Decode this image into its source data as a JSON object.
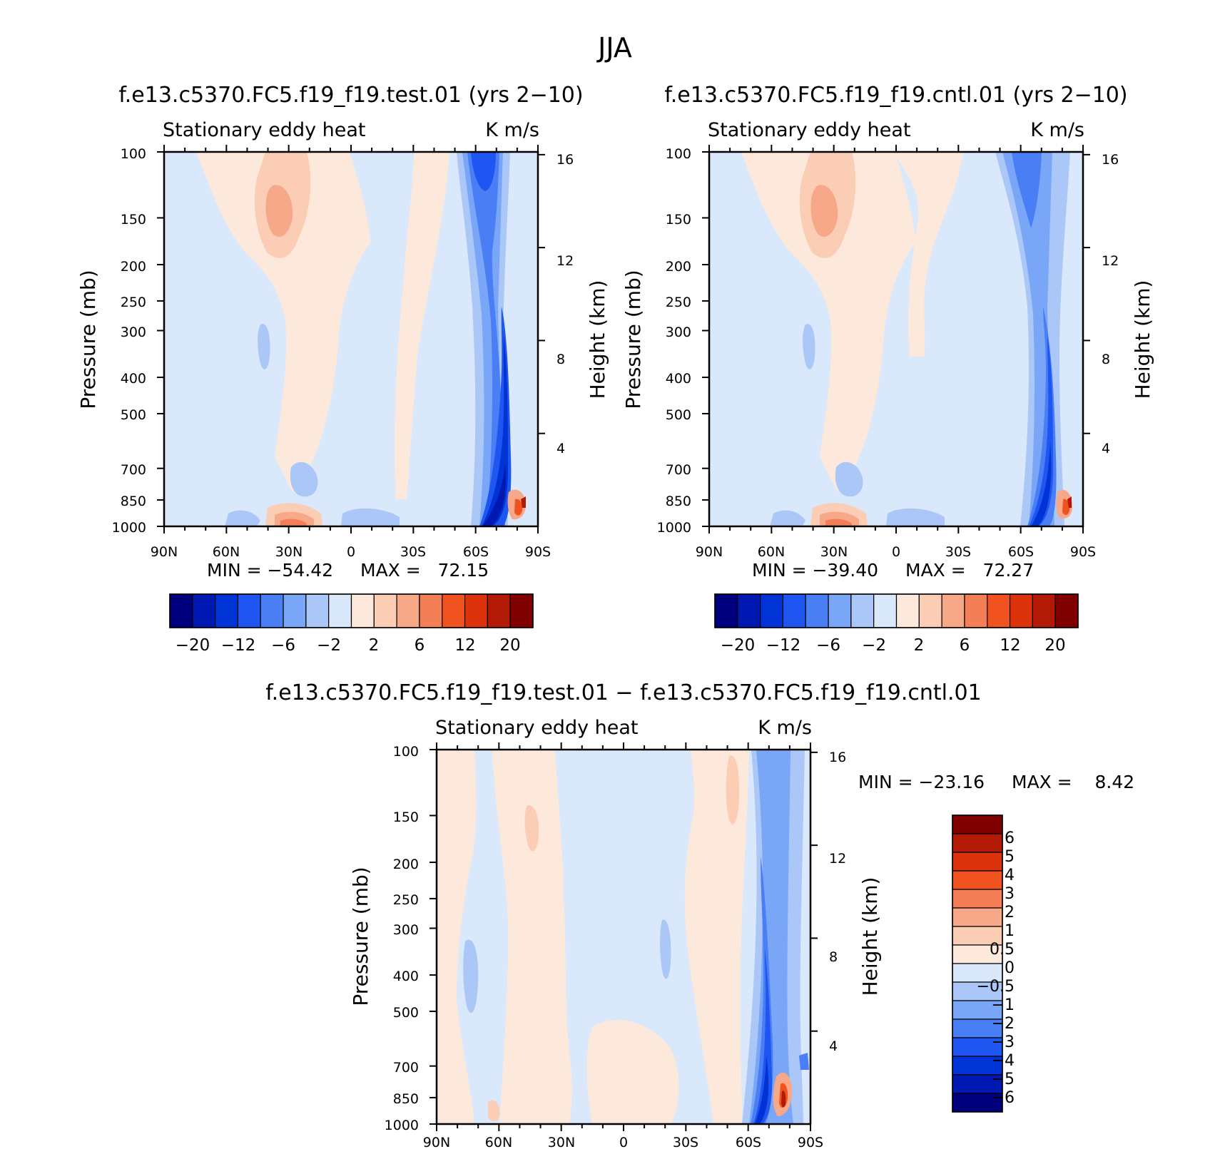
{
  "page_title": "JJA",
  "colors": {
    "blues": [
      "#00007f",
      "#0019b3",
      "#0033d6",
      "#1f55f0",
      "#4a7ef5",
      "#7aa6f7",
      "#abc7f8",
      "#d9e8fa"
    ],
    "reds": [
      "#fde9db",
      "#fbcdb5",
      "#f7a888",
      "#f47e55",
      "#f0531f",
      "#dc330c",
      "#b21a06",
      "#800000"
    ]
  },
  "chart_data": [
    {
      "type": "heatmap",
      "panel": "test",
      "case_title": "f.e13.c5370.FC5.f19_f19.test.01 (yrs 2−10)",
      "variable": "Stationary eddy heat",
      "units": "K m/s",
      "ylabel": "Pressure (mb)",
      "ylabel_right": "Height (km)",
      "x_ticks": [
        "90N",
        "60N",
        "30N",
        "0",
        "30S",
        "60S",
        "90S"
      ],
      "y_ticks": [
        "100",
        "150",
        "200",
        "250",
        "300",
        "400",
        "500",
        "700",
        "850",
        "1000"
      ],
      "height_ticks": [
        "16",
        "12",
        "8",
        "4"
      ],
      "min_label": "MIN = −54.42",
      "max_label": "MAX =   72.15",
      "colorbar_labels": [
        "−20",
        "−12",
        "−6",
        "−2",
        "2",
        "6",
        "12",
        "20"
      ]
    },
    {
      "type": "heatmap",
      "panel": "cntl",
      "case_title": "f.e13.c5370.FC5.f19_f19.cntl.01 (yrs 2−10)",
      "variable": "Stationary eddy heat",
      "units": "K m/s",
      "ylabel": "Pressure (mb)",
      "ylabel_right": "Height (km)",
      "x_ticks": [
        "90N",
        "60N",
        "30N",
        "0",
        "30S",
        "60S",
        "90S"
      ],
      "y_ticks": [
        "100",
        "150",
        "200",
        "250",
        "300",
        "400",
        "500",
        "700",
        "850",
        "1000"
      ],
      "height_ticks": [
        "16",
        "12",
        "8",
        "4"
      ],
      "min_label": "MIN = −39.40",
      "max_label": "MAX =   72.27",
      "colorbar_labels": [
        "−20",
        "−12",
        "−6",
        "−2",
        "2",
        "6",
        "12",
        "20"
      ]
    },
    {
      "type": "heatmap",
      "panel": "diff",
      "case_title": "f.e13.c5370.FC5.f19_f19.test.01 − f.e13.c5370.FC5.f19_f19.cntl.01",
      "variable": "Stationary eddy heat",
      "units": "K m/s",
      "ylabel": "Pressure (mb)",
      "ylabel_right": "Height (km)",
      "x_ticks": [
        "90N",
        "60N",
        "30N",
        "0",
        "30S",
        "60S",
        "90S"
      ],
      "y_ticks": [
        "100",
        "150",
        "200",
        "250",
        "300",
        "400",
        "500",
        "700",
        "850",
        "1000"
      ],
      "height_ticks": [
        "16",
        "12",
        "8",
        "4"
      ],
      "min_label": "MIN = −23.16",
      "max_label": "MAX =    8.42",
      "colorbar_labels": [
        "6",
        "5",
        "4",
        "3",
        "2",
        "1",
        "0.5",
        "0",
        "−0.5",
        "−1",
        "−2",
        "−3",
        "−4",
        "−5",
        "−6"
      ]
    }
  ]
}
